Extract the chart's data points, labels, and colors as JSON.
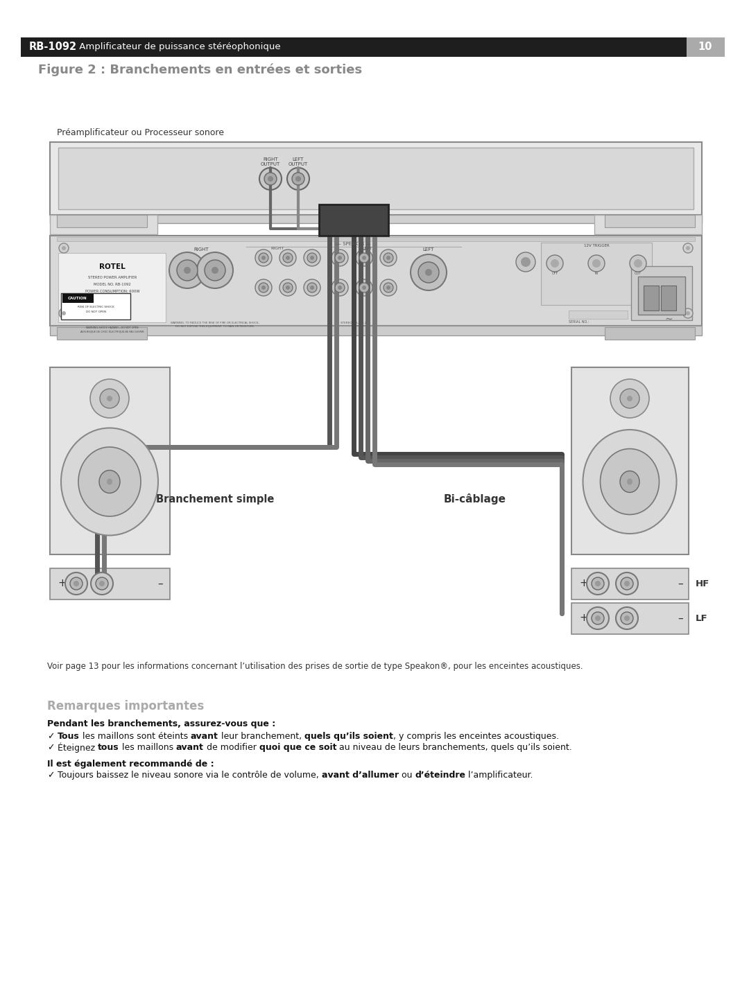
{
  "bg_color": "#ffffff",
  "header_bg": "#1e1e1e",
  "header_text_rb": "RB-1092",
  "header_text_subtitle": " Amplificateur de puissance stéréophonique",
  "header_page": "10",
  "figure_title": "Figure 2 : Branchements en entrées et sorties",
  "figure_title_color": "#888888",
  "preamp_label": "Préamplificateur ou Processeur sonore",
  "branchement_label": "Branchement simple",
  "bicablage_label": "Bi-câblage",
  "hf_label": "HF",
  "lf_label": "LF",
  "speakon_note": "Voir page 13 pour les informations concernant l’utilisation des prises de sortie de type Speakon®, pour les enceintes acoustiques.",
  "section_title": "Remarques importantes",
  "section_title_color": "#aaaaaa",
  "bold_heading1": "Pendant les branchements, assurez-vous que :",
  "bold_heading2": "Il est également recommandé de :",
  "bullet1": [
    [
      "Tous",
      true
    ],
    [
      " les maillons sont éteints ",
      false
    ],
    [
      "avant",
      true
    ],
    [
      " leur branchement, ",
      false
    ],
    [
      "quels qu’ils soient",
      true
    ],
    [
      ", y compris les enceintes acoustiques.",
      false
    ]
  ],
  "bullet2": [
    [
      "Éteignez ",
      false
    ],
    [
      "tous",
      true
    ],
    [
      " les maillons ",
      false
    ],
    [
      "avant",
      true
    ],
    [
      " de modifier ",
      false
    ],
    [
      "quoi que ce soit",
      true
    ],
    [
      " au niveau de leurs branchements, quels qu’ils soient.",
      false
    ]
  ],
  "bullet3": [
    [
      "Toujours baissez le niveau sonore via le contrôle de volume, ",
      false
    ],
    [
      "avant d’allumer",
      true
    ],
    [
      " ou ",
      false
    ],
    [
      "d’éteindre",
      true
    ],
    [
      " l’amplificateur.",
      false
    ]
  ]
}
